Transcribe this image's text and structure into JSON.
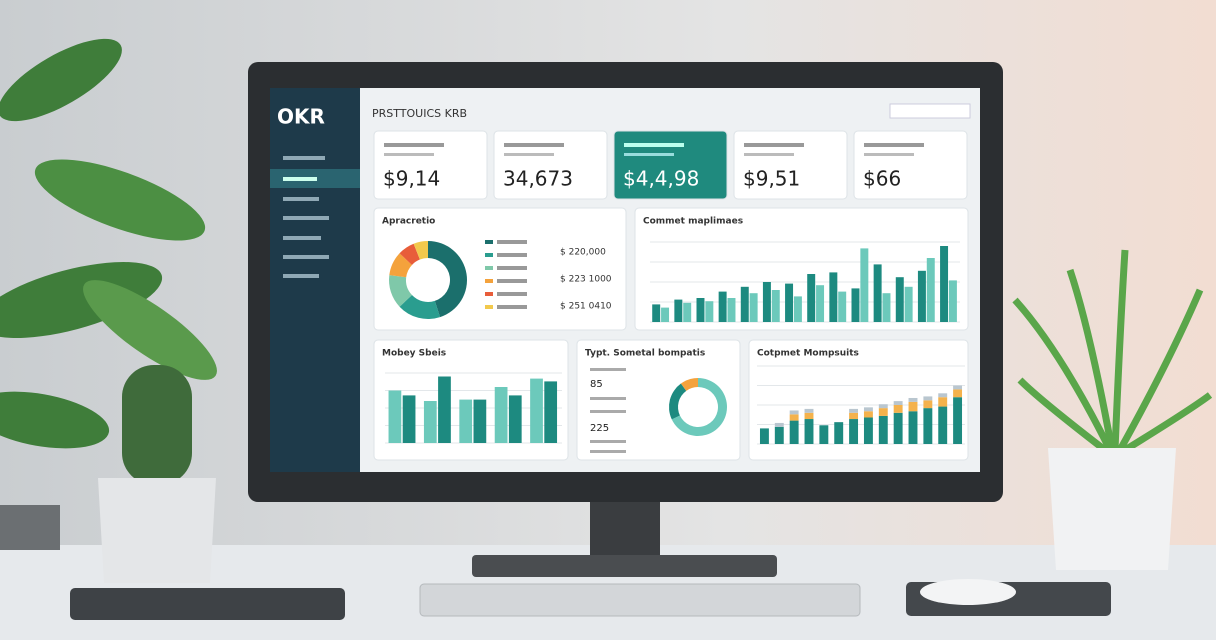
{
  "header": {
    "logo": "OKR",
    "title": "PRSTTOUICS KRB"
  },
  "cards": [
    {
      "value": "$9,14"
    },
    {
      "value": "34,673"
    },
    {
      "value": "$4,4,98"
    },
    {
      "value": "$9,51"
    },
    {
      "value": "$66"
    }
  ],
  "donut_panel": {
    "title": "Apracretio",
    "segments": [
      45,
      18,
      14,
      10,
      7,
      6
    ],
    "colors": [
      "#1b6f6c",
      "#2a9d8f",
      "#7fc8a9",
      "#f4a23c",
      "#e85d3a",
      "#f2c94c"
    ],
    "legend_values": [
      "$ 220,000",
      "$ 223 1000",
      "$ 251 0410"
    ]
  },
  "bar_panel": {
    "title": "Commet maplimaes",
    "series": [
      {
        "color": "#1d8a80",
        "values": [
          22,
          28,
          30,
          38,
          44,
          50,
          48,
          60,
          62,
          42,
          72,
          56,
          64,
          95
        ]
      },
      {
        "color": "#6cc9bb",
        "values": [
          18,
          24,
          26,
          30,
          36,
          40,
          32,
          46,
          38,
          92,
          36,
          44,
          80,
          52
        ]
      }
    ]
  },
  "bottom_left": {
    "title": "Mobey Sbeis",
    "series": [
      {
        "color": "#6cc9bb",
        "values": [
          75,
          60,
          62,
          80,
          92
        ]
      },
      {
        "color": "#1d8a80",
        "values": [
          68,
          95,
          62,
          68,
          88
        ]
      }
    ]
  },
  "bottom_mid": {
    "title": "Typt. Sometal bompatis",
    "items": [
      "85",
      "225"
    ],
    "segments": [
      68,
      22,
      10
    ],
    "colors": [
      "#6cc9bb",
      "#1d8a80",
      "#f4a23c"
    ]
  },
  "bottom_right": {
    "title": "Cotpmet Mompsuits",
    "series": [
      {
        "color": "#1d8a80",
        "values": [
          20,
          22,
          30,
          32,
          24,
          28,
          32,
          34,
          36,
          40,
          42,
          46,
          48,
          60
        ]
      },
      {
        "color": "#f4b24c",
        "values": [
          0,
          0,
          8,
          8,
          0,
          0,
          8,
          8,
          10,
          10,
          12,
          10,
          12,
          10
        ]
      },
      {
        "color": "#b9c6cf",
        "values": [
          0,
          5,
          5,
          5,
          0,
          0,
          5,
          5,
          5,
          5,
          5,
          5,
          5,
          5
        ]
      }
    ]
  }
}
